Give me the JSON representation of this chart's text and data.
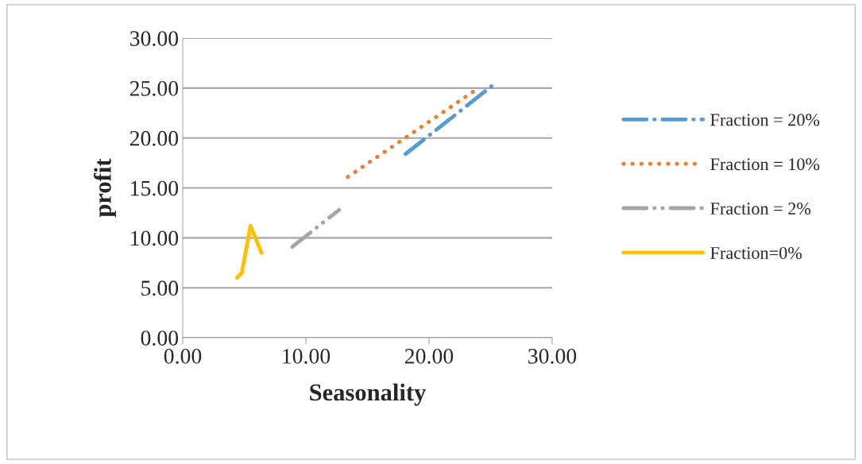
{
  "chart_data": {
    "type": "line",
    "xlabel": "Seasonality",
    "ylabel": "profit",
    "xlim": [
      0,
      30
    ],
    "ylim": [
      0,
      30
    ],
    "xticks": [
      {
        "value": 0,
        "label": "0.00"
      },
      {
        "value": 10,
        "label": "10.00"
      },
      {
        "value": 20,
        "label": "20.00"
      },
      {
        "value": 30,
        "label": "30.00"
      }
    ],
    "yticks": [
      {
        "value": 0,
        "label": "0.00"
      },
      {
        "value": 5,
        "label": "5.00"
      },
      {
        "value": 10,
        "label": "10.00"
      },
      {
        "value": 15,
        "label": "15.00"
      },
      {
        "value": 20,
        "label": "20.00"
      },
      {
        "value": 25,
        "label": "25.00"
      },
      {
        "value": 30,
        "label": "30.00"
      }
    ],
    "grid": "y",
    "legend": "right",
    "marker": "none",
    "series": [
      {
        "name": "Fraction = 20%",
        "color": "#5b9bd5",
        "line_style": "dashdot",
        "x": [
          18.1,
          25.3
        ],
        "values": [
          18.4,
          25.4
        ]
      },
      {
        "name": "Fraction = 10%",
        "color": "#ed7d31",
        "line_style": "dotted",
        "x": [
          13.4,
          23.9
        ],
        "values": [
          16.1,
          24.9
        ]
      },
      {
        "name": "Fraction = 2%",
        "color": "#a5a5a5",
        "line_style": "dashdotdot",
        "x": [
          8.9,
          12.7
        ],
        "values": [
          9.1,
          12.8
        ]
      },
      {
        "name": "Fraction=0%",
        "color": "#ffc000",
        "line_style": "solid",
        "x": [
          4.4,
          4.8,
          5.5,
          6.4
        ],
        "values": [
          6.0,
          6.5,
          11.2,
          8.5
        ]
      }
    ]
  }
}
